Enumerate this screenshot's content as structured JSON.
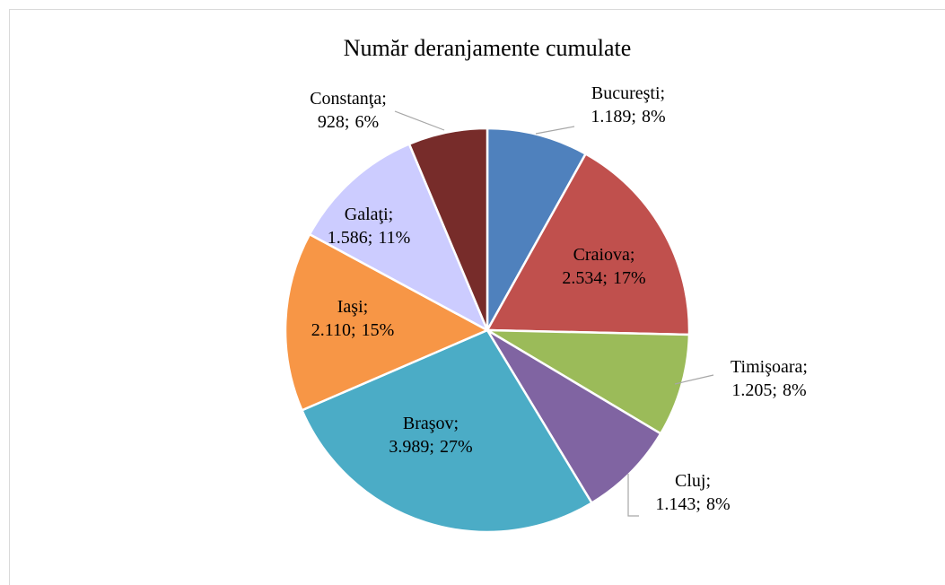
{
  "chart_data": {
    "type": "pie",
    "title": "Număr deranjamente cumulate",
    "label_separator": ";",
    "categories": [
      "Bucureşti",
      "Craiova",
      "Timişoara",
      "Cluj",
      "Braşov",
      "Iaşi",
      "Galaţi",
      "Constanţa"
    ],
    "values": [
      1189,
      2534,
      1205,
      1143,
      3989,
      2110,
      1586,
      928
    ],
    "value_labels": [
      "1.189",
      "2.534",
      "1.205",
      "1.143",
      "3.989",
      "2.110",
      "1.586",
      "928"
    ],
    "percents": [
      8,
      17,
      8,
      8,
      27,
      15,
      11,
      6
    ],
    "percent_labels": [
      "8%",
      "17%",
      "8%",
      "8%",
      "27%",
      "15%",
      "11%",
      "6%"
    ],
    "colors": [
      "#4f81bd",
      "#c0504d",
      "#9bbb59",
      "#8064a2",
      "#4bacc6",
      "#f79646",
      "#ccccff",
      "#772c2a"
    ]
  }
}
